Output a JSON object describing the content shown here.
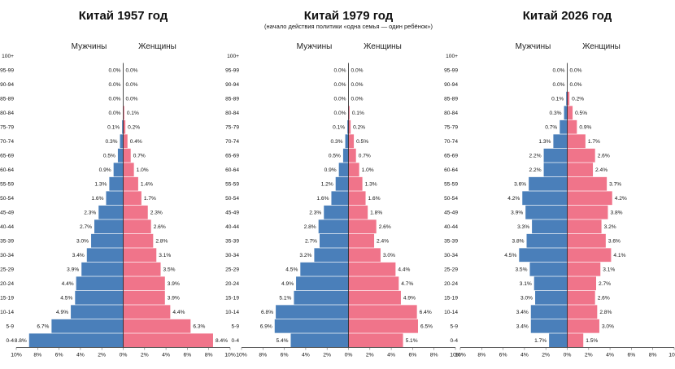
{
  "colors": {
    "male": "#4a7fba",
    "female": "#f0748a"
  },
  "chart_data": [
    {
      "type": "bar",
      "title": "Китай 1957 год",
      "subtitle": "",
      "left_label": "Мужчины",
      "right_label": "Женщины",
      "xlim": [
        -10,
        10
      ],
      "ticks": [
        "10%",
        "8%",
        "6%",
        "4%",
        "2%",
        "0%",
        "2%",
        "4%",
        "6%",
        "8%",
        "10%"
      ],
      "categories": [
        "100+",
        "95-99",
        "90-94",
        "85-89",
        "80-84",
        "75-79",
        "70-74",
        "65-69",
        "60-64",
        "55-59",
        "50-54",
        "45-49",
        "40-44",
        "35-39",
        "30-34",
        "25-29",
        "20-24",
        "15-19",
        "10-14",
        "5-9",
        "0-4"
      ],
      "series": [
        {
          "name": "Мужчины",
          "values": [
            null,
            0.0,
            0.0,
            0.0,
            0.0,
            0.1,
            0.3,
            0.5,
            0.9,
            1.3,
            1.6,
            2.3,
            2.7,
            3.0,
            3.4,
            3.9,
            4.4,
            4.5,
            4.9,
            6.7,
            8.8
          ],
          "labels": [
            "",
            "0.0%",
            "0.0%",
            "0.0%",
            "0.0%",
            "0.1%",
            "0.3%",
            "0.5%",
            "0.9%",
            "1.3%",
            "1.6%",
            "2.3%",
            "2.7%",
            "3.0%",
            "3.4%",
            "3.9%",
            "4.4%",
            "4.5%",
            "4.9%",
            "6.7%",
            "8.8%"
          ]
        },
        {
          "name": "Женщины",
          "values": [
            null,
            0.0,
            0.0,
            0.0,
            0.1,
            0.2,
            0.4,
            0.7,
            1.0,
            1.4,
            1.7,
            2.3,
            2.6,
            2.8,
            3.1,
            3.5,
            3.9,
            3.9,
            4.4,
            6.3,
            8.4
          ],
          "labels": [
            "",
            "0.0%",
            "0.0%",
            "0.0%",
            "0.1%",
            "0.2%",
            "0.4%",
            "0.7%",
            "1.0%",
            "1.4%",
            "1.7%",
            "2.3%",
            "2.6%",
            "2.8%",
            "3.1%",
            "3.5%",
            "3.9%",
            "3.9%",
            "4.4%",
            "6.3%",
            "8.4%"
          ]
        }
      ]
    },
    {
      "type": "bar",
      "title": "Китай 1979 год",
      "subtitle": "(начало действия политики «одна семья — один ребёнок»)",
      "left_label": "Мужчины",
      "right_label": "Женщины",
      "xlim": [
        -10,
        10
      ],
      "ticks": [
        "10%",
        "8%",
        "6%",
        "4%",
        "2%",
        "0%",
        "2%",
        "4%",
        "6%",
        "8%",
        "10%"
      ],
      "categories": [
        "100+",
        "95-99",
        "90-94",
        "85-89",
        "80-84",
        "75-79",
        "70-74",
        "65-69",
        "60-64",
        "55-59",
        "50-54",
        "45-49",
        "40-44",
        "35-39",
        "30-34",
        "25-29",
        "20-24",
        "15-19",
        "10-14",
        "5-9",
        "0-4"
      ],
      "series": [
        {
          "name": "Мужчины",
          "values": [
            null,
            0.0,
            0.0,
            0.0,
            0.0,
            0.1,
            0.3,
            0.5,
            0.9,
            1.2,
            1.6,
            2.3,
            2.8,
            2.7,
            3.2,
            4.5,
            4.9,
            5.1,
            6.8,
            6.9,
            5.4
          ],
          "labels": [
            "",
            "0.0%",
            "0.0%",
            "0.0%",
            "0.0%",
            "0.1%",
            "0.3%",
            "0.5%",
            "0.9%",
            "1.2%",
            "1.6%",
            "2.3%",
            "2.8%",
            "2.7%",
            "3.2%",
            "4.5%",
            "4.9%",
            "5.1%",
            "6.8%",
            "6.9%",
            "5.4%"
          ]
        },
        {
          "name": "Женщины",
          "values": [
            null,
            0.0,
            0.0,
            0.0,
            0.1,
            0.2,
            0.5,
            0.7,
            1.0,
            1.3,
            1.6,
            1.8,
            2.6,
            2.4,
            3.0,
            4.4,
            4.7,
            4.9,
            6.4,
            6.5,
            5.1
          ],
          "labels": [
            "",
            "0.0%",
            "0.0%",
            "0.0%",
            "0.1%",
            "0.2%",
            "0.5%",
            "0.7%",
            "1.0%",
            "1.3%",
            "1.6%",
            "1.8%",
            "2.6%",
            "2.4%",
            "3.0%",
            "4.4%",
            "4.7%",
            "4.9%",
            "6.4%",
            "6.5%",
            "5.1%"
          ]
        }
      ]
    },
    {
      "type": "bar",
      "title": "Китай 2026 год",
      "subtitle": "",
      "left_label": "Мужчины",
      "right_label": "Женщины",
      "xlim": [
        -10,
        10
      ],
      "ticks": [
        "10%",
        "8%",
        "6%",
        "4%",
        "2%",
        "0%",
        "2%",
        "4%",
        "6%",
        "8%",
        "10%"
      ],
      "categories": [
        "100+",
        "95-99",
        "90-94",
        "85-89",
        "80-84",
        "75-79",
        "70-74",
        "65-69",
        "60-64",
        "55-59",
        "50-54",
        "45-49",
        "40-44",
        "35-39",
        "30-34",
        "25-29",
        "20-24",
        "15-19",
        "10-14",
        "5-9",
        "0-4"
      ],
      "series": [
        {
          "name": "Мужчины",
          "values": [
            null,
            0.0,
            0.0,
            0.1,
            0.3,
            0.7,
            1.3,
            2.2,
            2.2,
            3.6,
            4.2,
            3.9,
            3.3,
            3.8,
            4.5,
            3.5,
            3.1,
            3.0,
            3.4,
            3.4,
            1.7
          ],
          "labels": [
            "",
            "0.0%",
            "0.0%",
            "0.1%",
            "0.3%",
            "0.7%",
            "1.3%",
            "2.2%",
            "2.2%",
            "3.6%",
            "4.2%",
            "3.9%",
            "3.3%",
            "3.8%",
            "4.5%",
            "3.5%",
            "3.1%",
            "3.0%",
            "3.4%",
            "3.4%",
            "1.7%"
          ]
        },
        {
          "name": "Женщины",
          "values": [
            null,
            0.0,
            0.0,
            0.2,
            0.5,
            0.9,
            1.7,
            2.6,
            2.4,
            3.7,
            4.2,
            3.8,
            3.2,
            3.6,
            4.1,
            3.1,
            2.7,
            2.6,
            2.8,
            3.0,
            1.5
          ],
          "labels": [
            "",
            "0.0%",
            "0.0%",
            "0.2%",
            "0.5%",
            "0.9%",
            "1.7%",
            "2.6%",
            "2.4%",
            "3.7%",
            "4.2%",
            "3.8%",
            "3.2%",
            "3.6%",
            "4.1%",
            "3.1%",
            "2.7%",
            "2.6%",
            "2.8%",
            "3.0%",
            "1.5%"
          ]
        }
      ]
    }
  ]
}
